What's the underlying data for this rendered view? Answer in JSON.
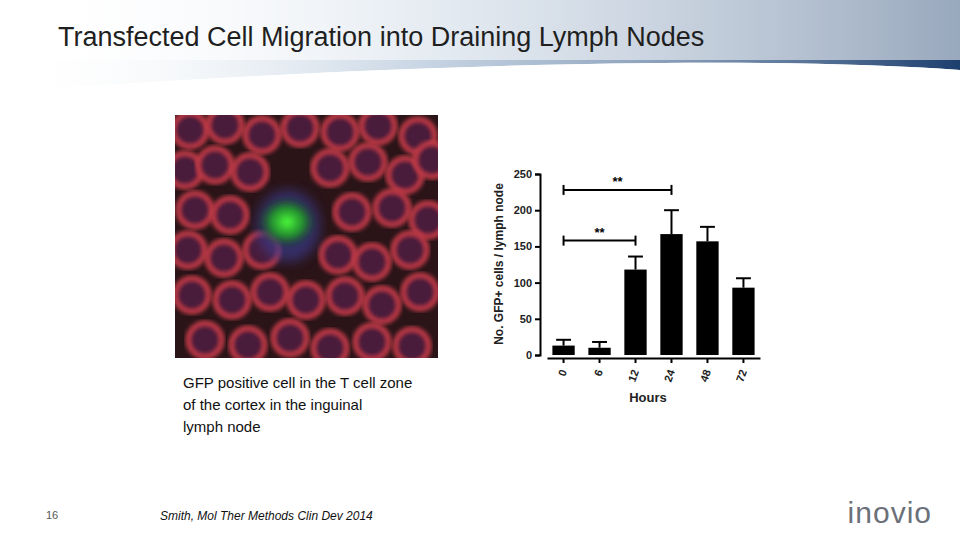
{
  "slide": {
    "title": "Transfected Cell Migration into Draining Lymph Nodes",
    "caption": [
      "GFP positive cell in the T cell zone",
      "of the cortex in the inguinal",
      "lymph node"
    ],
    "page_number": "16",
    "citation": "Smith, Mol Ther Methods Clin Dev 2014",
    "logo": "inovio"
  },
  "chart_data": {
    "type": "bar",
    "x_label": "Hours",
    "y_label": "No. GFP+ cells / lymph node",
    "categories": [
      "0",
      "6",
      "12",
      "24",
      "48",
      "72"
    ],
    "values": [
      13,
      10,
      118,
      167,
      157,
      93
    ],
    "errors": [
      8,
      8,
      18,
      33,
      20,
      13
    ],
    "color": "#000000",
    "ylim": [
      0,
      250
    ],
    "yticks": [
      0,
      50,
      100,
      150,
      200,
      250
    ],
    "grid": false,
    "annotations": [
      {
        "text": "**",
        "x_from": "0",
        "x_to": "24",
        "y": 228
      },
      {
        "text": "**",
        "x_from": "0",
        "x_to": "12",
        "y": 158
      }
    ]
  }
}
